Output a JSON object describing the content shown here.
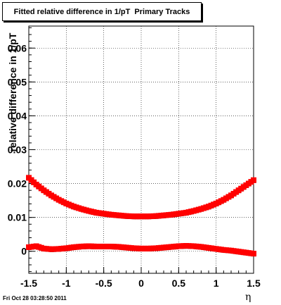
{
  "title": "Fitted relative difference in 1/pT  Primary Tracks",
  "footer": "Fri Oct 28 03:28:50 2011",
  "chart_data": {
    "type": "scatter",
    "title": "Fitted relative difference in 1/pT  Primary Tracks",
    "xlabel": "η",
    "ylabel": "relative difference in 1/pT",
    "xlim": [
      -1.5,
      1.5
    ],
    "ylim": [
      -0.0065,
      0.0665
    ],
    "grid": true,
    "x_ticks": [
      -1.5,
      -1,
      -0.5,
      0,
      0.5,
      1,
      1.5
    ],
    "x_tick_labels": [
      "-1.5",
      "-1",
      "-0.5",
      "0",
      "0.5",
      "1",
      "1.5"
    ],
    "y_ticks": [
      0,
      0.01,
      0.02,
      0.03,
      0.04,
      0.05,
      0.06
    ],
    "y_tick_labels": [
      "0",
      "0.01",
      "0.02",
      "0.03",
      "0.04",
      "0.05",
      "0.06"
    ],
    "series": [
      {
        "color": "#ff0000",
        "x": [
          -1.5,
          -1.4,
          -1.3,
          -1.2,
          -1.1,
          -1.0,
          -0.9,
          -0.8,
          -0.7,
          -0.6,
          -0.5,
          -0.4,
          -0.3,
          -0.2,
          -0.1,
          0.0,
          0.1,
          0.2,
          0.3,
          0.4,
          0.5,
          0.6,
          0.7,
          0.8,
          0.9,
          1.0,
          1.1,
          1.2,
          1.3,
          1.4,
          1.5
        ],
        "y": [
          0.0215,
          0.0195,
          0.0178,
          0.0163,
          0.015,
          0.0139,
          0.013,
          0.0123,
          0.0117,
          0.0112,
          0.0109,
          0.0106,
          0.0104,
          0.0102,
          0.0101,
          0.0101,
          0.0101,
          0.0102,
          0.0104,
          0.0106,
          0.0109,
          0.0112,
          0.0117,
          0.0123,
          0.013,
          0.0139,
          0.015,
          0.0163,
          0.0178,
          0.0193,
          0.0208
        ]
      },
      {
        "color": "#ff0000",
        "x": [
          -1.5,
          -1.4,
          -1.3,
          -1.2,
          -1.1,
          -1.0,
          -0.9,
          -0.8,
          -0.7,
          -0.6,
          -0.5,
          -0.4,
          -0.3,
          -0.2,
          -0.1,
          0.0,
          0.1,
          0.2,
          0.3,
          0.4,
          0.5,
          0.6,
          0.7,
          0.8,
          0.9,
          1.0,
          1.1,
          1.2,
          1.3,
          1.4,
          1.5
        ],
        "y": [
          0.001,
          0.0013,
          0.0006,
          0.0004,
          0.0005,
          0.0007,
          0.001,
          0.0012,
          0.0013,
          0.0012,
          0.0012,
          0.0012,
          0.0011,
          0.0009,
          0.0007,
          0.0006,
          0.0006,
          0.0007,
          0.0009,
          0.0011,
          0.0013,
          0.0014,
          0.0013,
          0.0011,
          0.0008,
          0.0005,
          0.0002,
          0.0,
          -0.0003,
          -0.0006,
          -0.0009
        ]
      }
    ]
  }
}
